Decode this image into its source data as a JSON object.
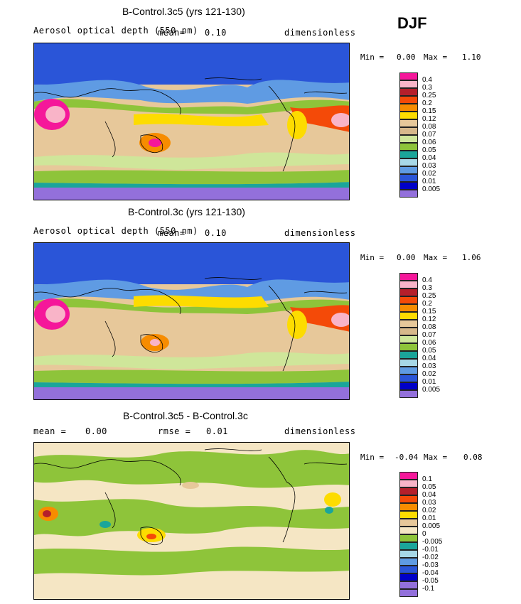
{
  "season": "DJF",
  "panels": [
    {
      "title": "B-Control.3c5 (yrs 121-130)",
      "subtitle": "Aerosol optical depth (550 nm)",
      "stat_label": "mean=",
      "stat_value": "0.10",
      "units": "dimensionless",
      "min_text": "Min =",
      "min_value": "0.00",
      "max_text": "Max =",
      "max_value": "1.10",
      "levels": [
        "0.4",
        "0.3",
        "0.25",
        "0.2",
        "0.15",
        "0.12",
        "0.08",
        "0.07",
        "0.06",
        "0.05",
        "0.04",
        "0.03",
        "0.02",
        "0.01",
        "0.005"
      ],
      "colors": [
        "#f5179a",
        "#f9b4c8",
        "#b51f2b",
        "#f44a08",
        "#f78c00",
        "#fddc00",
        "#e7c89a",
        "#d7b88b",
        "#cfe69a",
        "#8ec43a",
        "#1aa59a",
        "#a7d8e7",
        "#5f9be3",
        "#2a55d8",
        "#0000c8",
        "#9370db"
      ]
    },
    {
      "title": "B-Control.3c (yrs 121-130)",
      "subtitle": "Aerosol optical depth (550 nm)",
      "stat_label": "mean=",
      "stat_value": "0.10",
      "units": "dimensionless",
      "min_text": "Min =",
      "min_value": "0.00",
      "max_text": "Max =",
      "max_value": "1.06",
      "levels": [
        "0.4",
        "0.3",
        "0.25",
        "0.2",
        "0.15",
        "0.12",
        "0.08",
        "0.07",
        "0.06",
        "0.05",
        "0.04",
        "0.03",
        "0.02",
        "0.01",
        "0.005"
      ],
      "colors": [
        "#f5179a",
        "#f9b4c8",
        "#b51f2b",
        "#f44a08",
        "#f78c00",
        "#fddc00",
        "#e7c89a",
        "#d7b88b",
        "#cfe69a",
        "#8ec43a",
        "#1aa59a",
        "#a7d8e7",
        "#5f9be3",
        "#2a55d8",
        "#0000c8",
        "#9370db"
      ]
    },
    {
      "title": "B-Control.3c5 - B-Control.3c",
      "mean_label": "mean =",
      "mean_value": "0.00",
      "rmse_label": "rmse =",
      "rmse_value": "0.01",
      "units": "dimensionless",
      "min_text": "Min =",
      "min_value": "-0.04",
      "max_text": "Max =",
      "max_value": "0.08",
      "levels": [
        "0.1",
        "0.05",
        "0.04",
        "0.03",
        "0.02",
        "0.01",
        "0.005",
        "0",
        "-0.005",
        "-0.01",
        "-0.02",
        "-0.03",
        "-0.04",
        "-0.05",
        "-0.1"
      ],
      "colors": [
        "#f5179a",
        "#f9b4c8",
        "#b51f2b",
        "#f44a08",
        "#f78c00",
        "#fddc00",
        "#e7c89a",
        "#f5e6c4",
        "#8ec43a",
        "#1aa59a",
        "#a7d8e7",
        "#5f9be3",
        "#2a55d8",
        "#0000c8",
        "#9370db",
        "#9370db"
      ]
    }
  ]
}
